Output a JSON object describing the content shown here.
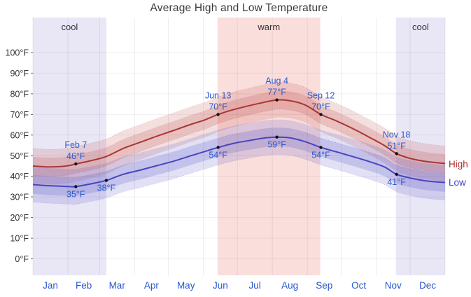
{
  "title": "Average High and Low Temperature",
  "legend": {
    "high": "High",
    "low": "Low"
  },
  "colors": {
    "title_text": "#3a3a3a",
    "axis_label": "#333333",
    "season_label": "#333333",
    "annotation_blue": "#2b5acc",
    "month_blue": "#2857d0",
    "high_line": "#a83636",
    "high_band": "#c05050",
    "high_label": "#b22929",
    "low_line": "#4a44c0",
    "low_band": "#5b55c5",
    "low_label": "#4343cf",
    "dot": "#111111",
    "grid_horizontal": "rgba(0,0,0,0.06)",
    "grid_vertical": "rgba(70,70,110,0.10)",
    "tick": "#666666",
    "cool_band_fill": "#e9e7f6",
    "warm_band_fill": "#f9dedc"
  },
  "y_axis": {
    "ticks": [
      {
        "value": 0,
        "label": "0°F"
      },
      {
        "value": 10,
        "label": "10°F"
      },
      {
        "value": 20,
        "label": "20°F"
      },
      {
        "value": 30,
        "label": "30°F"
      },
      {
        "value": 40,
        "label": "40°F"
      },
      {
        "value": 50,
        "label": "50°F"
      },
      {
        "value": 60,
        "label": "60°F"
      },
      {
        "value": 70,
        "label": "70°F"
      },
      {
        "value": 80,
        "label": "80°F"
      },
      {
        "value": 90,
        "label": "90°F"
      },
      {
        "value": 100,
        "label": "100°F"
      }
    ]
  },
  "x_axis": {
    "months": [
      "Jan",
      "Feb",
      "Mar",
      "Apr",
      "May",
      "Jun",
      "Jul",
      "Aug",
      "Sep",
      "Oct",
      "Nov",
      "Dec"
    ],
    "month_mid_days": [
      15.5,
      45,
      74.5,
      105,
      135.5,
      166,
      196.5,
      227.5,
      258,
      288.5,
      319,
      349.5
    ],
    "month_start_days": [
      0,
      31,
      59,
      90,
      120,
      151,
      181,
      212,
      243,
      273,
      304,
      334,
      365
    ]
  },
  "chart_data": {
    "type": "line",
    "title": "Average High and Low Temperature",
    "x_unit": "day_of_year",
    "xlim_days": [
      0,
      365
    ],
    "ylim_f": [
      -8,
      117
    ],
    "y_tick_range_f": [
      0,
      100
    ],
    "grid": true,
    "legend_position": "right",
    "band_offsets_f": {
      "inner_25_75": 4.5,
      "outer_10_90": 8.5
    },
    "seasons": [
      {
        "label": "cool",
        "start_day": 0,
        "end_day": 65,
        "kind": "cool"
      },
      {
        "label": "warm",
        "start_day": 163.5,
        "end_day": 254.5,
        "kind": "warm"
      },
      {
        "label": "cool",
        "start_day": 321.5,
        "end_day": 365,
        "kind": "cool"
      }
    ],
    "series": [
      {
        "name": "High",
        "points": [
          [
            0,
            45
          ],
          [
            12,
            44.6
          ],
          [
            24,
            44.7
          ],
          [
            32,
            45.2
          ],
          [
            38,
            46
          ],
          [
            50,
            47.4
          ],
          [
            65,
            49.6
          ],
          [
            80,
            53.5
          ],
          [
            95,
            56.5
          ],
          [
            110,
            59.5
          ],
          [
            125,
            62.3
          ],
          [
            140,
            65.2
          ],
          [
            152,
            67.3
          ],
          [
            164,
            70
          ],
          [
            178,
            72.4
          ],
          [
            192,
            74.3
          ],
          [
            204,
            75.8
          ],
          [
            216,
            77
          ],
          [
            228,
            76.6
          ],
          [
            241,
            74.6
          ],
          [
            255,
            70
          ],
          [
            269,
            66.8
          ],
          [
            283,
            63.2
          ],
          [
            297,
            59.2
          ],
          [
            311,
            55
          ],
          [
            322,
            51
          ],
          [
            334,
            48.7
          ],
          [
            348,
            47.2
          ],
          [
            365,
            46.2
          ]
        ]
      },
      {
        "name": "Low",
        "points": [
          [
            0,
            36
          ],
          [
            12,
            35.5
          ],
          [
            24,
            35.2
          ],
          [
            32,
            35
          ],
          [
            38,
            35
          ],
          [
            50,
            36.2
          ],
          [
            65,
            38
          ],
          [
            80,
            41
          ],
          [
            95,
            43
          ],
          [
            110,
            45.2
          ],
          [
            125,
            47.4
          ],
          [
            140,
            50
          ],
          [
            152,
            52
          ],
          [
            164,
            54
          ],
          [
            178,
            56
          ],
          [
            192,
            57.4
          ],
          [
            204,
            58.5
          ],
          [
            216,
            59
          ],
          [
            228,
            58.6
          ],
          [
            241,
            56.8
          ],
          [
            255,
            54
          ],
          [
            269,
            51.8
          ],
          [
            283,
            49.6
          ],
          [
            297,
            47.3
          ],
          [
            311,
            44.6
          ],
          [
            322,
            41
          ],
          [
            334,
            39.2
          ],
          [
            348,
            37.8
          ],
          [
            365,
            37
          ]
        ]
      }
    ],
    "annotations": [
      {
        "day": 38,
        "series": "High",
        "date_label": "Feb 7",
        "value": 46,
        "value_label": "46°F",
        "position": "above"
      },
      {
        "day": 38,
        "series": "Low",
        "value": 35,
        "value_label": "35°F",
        "position": "below"
      },
      {
        "day": 65,
        "series": "Low",
        "value": 38,
        "value_label": "38°F",
        "position": "below"
      },
      {
        "day": 164,
        "series": "High",
        "date_label": "Jun 13",
        "value": 70,
        "value_label": "70°F",
        "position": "above"
      },
      {
        "day": 164,
        "series": "Low",
        "value": 54,
        "value_label": "54°F",
        "position": "below"
      },
      {
        "day": 216,
        "series": "High",
        "date_label": "Aug 4",
        "value": 77,
        "value_label": "77°F",
        "position": "above"
      },
      {
        "day": 216,
        "series": "Low",
        "value": 59,
        "value_label": "59°F",
        "position": "below"
      },
      {
        "day": 255,
        "series": "High",
        "date_label": "Sep 12",
        "value": 70,
        "value_label": "70°F",
        "position": "above"
      },
      {
        "day": 255,
        "series": "Low",
        "value": 54,
        "value_label": "54°F",
        "position": "below"
      },
      {
        "day": 322,
        "series": "High",
        "date_label": "Nov 18",
        "value": 51,
        "value_label": "51°F",
        "position": "above"
      },
      {
        "day": 322,
        "series": "Low",
        "value": 41,
        "value_label": "41°F",
        "position": "below"
      }
    ]
  }
}
